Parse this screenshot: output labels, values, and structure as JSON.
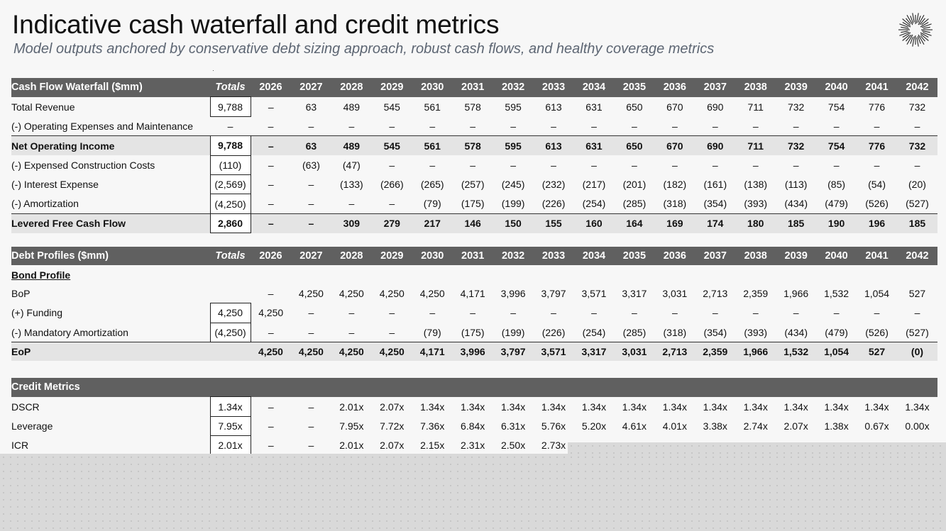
{
  "title": "Indicative cash waterfall and credit metrics",
  "subtitle": "Model outputs anchored by conservative debt sizing approach, robust cash flows, and healthy coverage metrics",
  "logo_icon": "sunburst-logo-icon",
  "years": [
    "2026",
    "2027",
    "2028",
    "2029",
    "2030",
    "2031",
    "2032",
    "2033",
    "2034",
    "2035",
    "2036",
    "2037",
    "2038",
    "2039",
    "2040",
    "2041",
    "2042"
  ],
  "cash_flow": {
    "header": "Cash Flow Waterfall ($mm)",
    "totals_label": "Totals",
    "rows": [
      {
        "label": "Total Revenue",
        "total": "9,788",
        "values": [
          "–",
          "63",
          "489",
          "545",
          "561",
          "578",
          "595",
          "613",
          "631",
          "650",
          "670",
          "690",
          "711",
          "732",
          "754",
          "776",
          "732"
        ]
      },
      {
        "label": "(-) Operating Expenses and Maintenance",
        "total": "–",
        "values": [
          "–",
          "–",
          "–",
          "–",
          "–",
          "–",
          "–",
          "–",
          "–",
          "–",
          "–",
          "–",
          "–",
          "–",
          "–",
          "–",
          "–"
        ]
      },
      {
        "label": "Net Operating Income",
        "total": "9,788",
        "values": [
          "–",
          "63",
          "489",
          "545",
          "561",
          "578",
          "595",
          "613",
          "631",
          "650",
          "670",
          "690",
          "711",
          "732",
          "754",
          "776",
          "732"
        ]
      },
      {
        "label": "(-) Expensed Construction Costs",
        "total": "(110)",
        "values": [
          "–",
          "(63)",
          "(47)",
          "–",
          "–",
          "–",
          "–",
          "–",
          "–",
          "–",
          "–",
          "–",
          "–",
          "–",
          "–",
          "–",
          "–"
        ]
      },
      {
        "label": "(-) Interest Expense",
        "total": "(2,569)",
        "values": [
          "–",
          "–",
          "(133)",
          "(266)",
          "(265)",
          "(257)",
          "(245)",
          "(232)",
          "(217)",
          "(201)",
          "(182)",
          "(161)",
          "(138)",
          "(113)",
          "(85)",
          "(54)",
          "(20)"
        ]
      },
      {
        "label": "(-) Amortization",
        "total": "(4,250)",
        "values": [
          "–",
          "–",
          "–",
          "–",
          "(79)",
          "(175)",
          "(199)",
          "(226)",
          "(254)",
          "(285)",
          "(318)",
          "(354)",
          "(393)",
          "(434)",
          "(479)",
          "(526)",
          "(527)"
        ]
      },
      {
        "label": "Levered Free Cash Flow",
        "total": "2,860",
        "values": [
          "–",
          "–",
          "309",
          "279",
          "217",
          "146",
          "150",
          "155",
          "160",
          "164",
          "169",
          "174",
          "180",
          "185",
          "190",
          "196",
          "185"
        ]
      }
    ]
  },
  "debt": {
    "header": "Debt Profiles ($mm)",
    "totals_label": "Totals",
    "subhead": "Bond Profile",
    "rows": [
      {
        "label": "BoP",
        "total": "",
        "values": [
          "–",
          "4,250",
          "4,250",
          "4,250",
          "4,250",
          "4,171",
          "3,996",
          "3,797",
          "3,571",
          "3,317",
          "3,031",
          "2,713",
          "2,359",
          "1,966",
          "1,532",
          "1,054",
          "527"
        ]
      },
      {
        "label": "(+) Funding",
        "total": "4,250",
        "values": [
          "4,250",
          "–",
          "–",
          "–",
          "–",
          "–",
          "–",
          "–",
          "–",
          "–",
          "–",
          "–",
          "–",
          "–",
          "–",
          "–",
          "–"
        ]
      },
      {
        "label": "(-) Mandatory Amortization",
        "total": "(4,250)",
        "values": [
          "–",
          "–",
          "–",
          "–",
          "(79)",
          "(175)",
          "(199)",
          "(226)",
          "(254)",
          "(285)",
          "(318)",
          "(354)",
          "(393)",
          "(434)",
          "(479)",
          "(526)",
          "(527)"
        ]
      },
      {
        "label": "EoP",
        "total": "",
        "values": [
          "4,250",
          "4,250",
          "4,250",
          "4,250",
          "4,171",
          "3,996",
          "3,797",
          "3,571",
          "3,317",
          "3,031",
          "2,713",
          "2,359",
          "1,966",
          "1,532",
          "1,054",
          "527",
          "(0)"
        ]
      }
    ]
  },
  "credit": {
    "header": "Credit Metrics",
    "rows": [
      {
        "label": "DSCR",
        "total": "1.34x",
        "values": [
          "–",
          "–",
          "2.01x",
          "2.07x",
          "1.34x",
          "1.34x",
          "1.34x",
          "1.34x",
          "1.34x",
          "1.34x",
          "1.34x",
          "1.34x",
          "1.34x",
          "1.34x",
          "1.34x",
          "1.34x",
          "1.34x"
        ]
      },
      {
        "label": "Leverage",
        "total": "7.95x",
        "values": [
          "–",
          "–",
          "7.95x",
          "7.72x",
          "7.36x",
          "6.84x",
          "6.31x",
          "5.76x",
          "5.20x",
          "4.61x",
          "4.01x",
          "3.38x",
          "2.74x",
          "2.07x",
          "1.38x",
          "0.67x",
          "0.00x"
        ]
      },
      {
        "label": "ICR",
        "total": "2.01x",
        "values": [
          "–",
          "–",
          "2.01x",
          "2.07x",
          "2.15x",
          "2.31x",
          "2.50x",
          "2.73x",
          "",
          "",
          "",
          "",
          "",
          "",
          "",
          "",
          ""
        ]
      }
    ]
  }
}
